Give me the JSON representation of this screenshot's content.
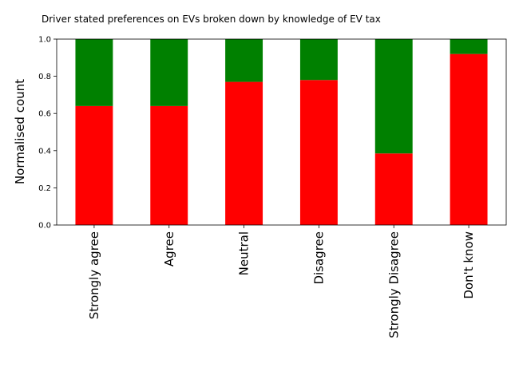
{
  "chart_data": {
    "type": "bar",
    "stacked": true,
    "title": "Driver stated preferences on EVs broken down by knowledge of EV tax",
    "ylabel": "Normalised count",
    "xlabel": "",
    "categories": [
      "Strongly agree",
      "Agree",
      "Neutral",
      "Disagree",
      "Strongly Disagree",
      "Don't know"
    ],
    "ylim": [
      0,
      1.0
    ],
    "yticks": [
      "0.0",
      "0.2",
      "0.4",
      "0.6",
      "0.8",
      "1.0"
    ],
    "grid": false,
    "series": [
      {
        "color": "#ff0000",
        "values": [
          0.64,
          0.64,
          0.77,
          0.78,
          0.385,
          0.92
        ]
      },
      {
        "color": "#008000",
        "values": [
          0.36,
          0.36,
          0.23,
          0.22,
          0.615,
          0.08
        ]
      }
    ]
  }
}
